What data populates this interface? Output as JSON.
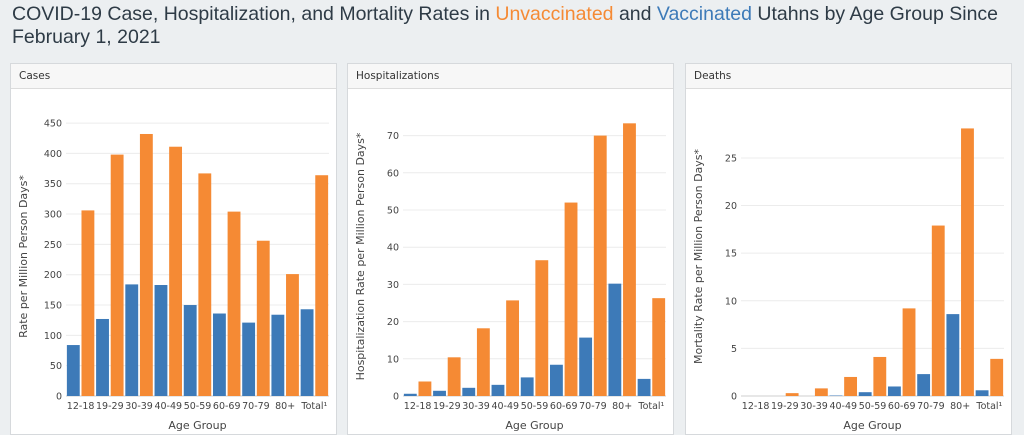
{
  "page": {
    "title_prefix": "COVID-19 Case, Hospitalization, and Mortality Rates in ",
    "title_unvaccinated": "Unvaccinated",
    "title_and": " and ",
    "title_vaccinated": "Vaccinated",
    "title_suffix": " Utahns by Age Group Since February 1, 2021",
    "colors": {
      "unvaccinated": "#f58a34",
      "vaccinated": "#3d7ab8"
    }
  },
  "chart_data": [
    {
      "type": "bar",
      "panel_title": "Cases",
      "xlabel": "Age Group",
      "ylabel": "Rate per Million Person Days*",
      "categories": [
        "12-18",
        "19-29",
        "30-39",
        "40-49",
        "50-59",
        "60-69",
        "70-79",
        "80+",
        "Total¹"
      ],
      "ylim": [
        0,
        460
      ],
      "yticks": [
        0,
        50,
        100,
        150,
        200,
        250,
        300,
        350,
        400,
        450
      ],
      "grid": true,
      "series": [
        {
          "group": "vaccinated",
          "values": [
            84,
            127,
            184,
            183,
            150,
            136,
            121,
            134,
            143
          ]
        },
        {
          "group": "unvaccinated",
          "values": [
            306,
            398,
            432,
            411,
            367,
            304,
            256,
            201,
            364
          ]
        }
      ]
    },
    {
      "type": "bar",
      "panel_title": "Hospitalizations",
      "xlabel": "Age Group",
      "ylabel": "Hospitalization Rate per Million Person Days*",
      "categories": [
        "12-18",
        "19-29",
        "30-39",
        "40-49",
        "50-59",
        "60-69",
        "70-79",
        "80+",
        "Total¹"
      ],
      "ylim": [
        0,
        75
      ],
      "yticks": [
        0,
        10,
        20,
        30,
        40,
        50,
        60,
        70
      ],
      "grid": true,
      "series": [
        {
          "group": "vaccinated",
          "values": [
            0.6,
            1.4,
            2.2,
            3.0,
            5.0,
            8.4,
            15.7,
            30.2,
            4.6
          ]
        },
        {
          "group": "unvaccinated",
          "values": [
            3.9,
            10.4,
            18.2,
            25.7,
            36.5,
            52.0,
            70.0,
            73.3,
            26.3
          ]
        }
      ]
    },
    {
      "type": "bar",
      "panel_title": "Deaths",
      "xlabel": "Age Group",
      "ylabel": "Mortality Rate per Million Person Days*",
      "categories": [
        "12-18",
        "19-29",
        "30-39",
        "40-49",
        "50-59",
        "60-69",
        "70-79",
        "80+",
        "Total¹"
      ],
      "ylim": [
        0,
        29.3
      ],
      "yticks": [
        0,
        5,
        10,
        15,
        20,
        25
      ],
      "grid": true,
      "series": [
        {
          "group": "vaccinated",
          "values": [
            0,
            0,
            0,
            0.05,
            0.4,
            1.0,
            2.3,
            8.6,
            0.6
          ]
        },
        {
          "group": "unvaccinated",
          "values": [
            0,
            0.3,
            0.8,
            2.0,
            4.1,
            9.2,
            17.9,
            28.1,
            3.9
          ]
        }
      ]
    }
  ]
}
